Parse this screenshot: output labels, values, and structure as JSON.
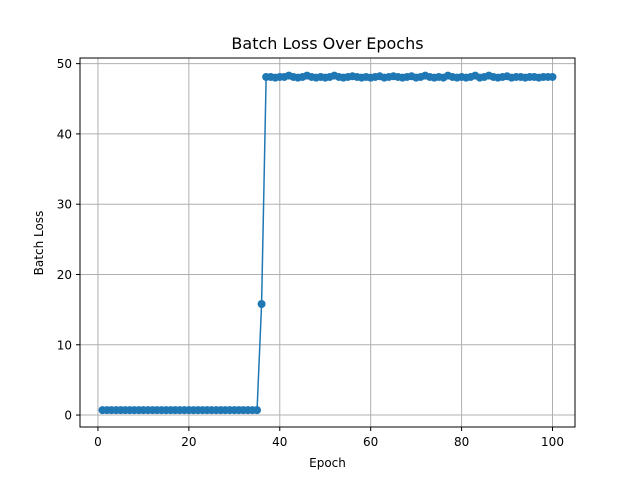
{
  "chart_data": {
    "type": "line",
    "title": "Batch Loss Over Epochs",
    "xlabel": "Epoch",
    "ylabel": "Batch Loss",
    "xlim": [
      -3.95,
      104.95
    ],
    "ylim": [
      -1.7,
      50.8
    ],
    "xticks": [
      0,
      20,
      40,
      60,
      80,
      100
    ],
    "yticks": [
      0,
      10,
      20,
      30,
      40,
      50
    ],
    "grid": true,
    "marker": "circle",
    "color": "#1f77b4",
    "series": [
      {
        "name": "Batch Loss",
        "x": [
          1,
          2,
          3,
          4,
          5,
          6,
          7,
          8,
          9,
          10,
          11,
          12,
          13,
          14,
          15,
          16,
          17,
          18,
          19,
          20,
          21,
          22,
          23,
          24,
          25,
          26,
          27,
          28,
          29,
          30,
          31,
          32,
          33,
          34,
          35,
          36,
          37,
          38,
          39,
          40,
          41,
          42,
          43,
          44,
          45,
          46,
          47,
          48,
          49,
          50,
          51,
          52,
          53,
          54,
          55,
          56,
          57,
          58,
          59,
          60,
          61,
          62,
          63,
          64,
          65,
          66,
          67,
          68,
          69,
          70,
          71,
          72,
          73,
          74,
          75,
          76,
          77,
          78,
          79,
          80,
          81,
          82,
          83,
          84,
          85,
          86,
          87,
          88,
          89,
          90,
          91,
          92,
          93,
          94,
          95,
          96,
          97,
          98,
          99,
          100
        ],
        "values": [
          0.7,
          0.7,
          0.7,
          0.7,
          0.7,
          0.7,
          0.7,
          0.7,
          0.7,
          0.7,
          0.7,
          0.7,
          0.7,
          0.7,
          0.7,
          0.7,
          0.7,
          0.7,
          0.7,
          0.7,
          0.7,
          0.7,
          0.7,
          0.7,
          0.7,
          0.7,
          0.7,
          0.7,
          0.7,
          0.7,
          0.7,
          0.7,
          0.7,
          0.7,
          0.7,
          15.8,
          48.1,
          48.1,
          48.0,
          48.1,
          48.1,
          48.3,
          48.1,
          48.0,
          48.1,
          48.3,
          48.1,
          48.0,
          48.1,
          48.0,
          48.1,
          48.3,
          48.1,
          48.0,
          48.1,
          48.2,
          48.1,
          48.0,
          48.1,
          48.0,
          48.1,
          48.2,
          48.0,
          48.1,
          48.2,
          48.1,
          48.0,
          48.1,
          48.2,
          48.0,
          48.1,
          48.3,
          48.1,
          48.0,
          48.1,
          48.0,
          48.3,
          48.1,
          48.0,
          48.1,
          48.0,
          48.1,
          48.3,
          48.0,
          48.1,
          48.3,
          48.1,
          48.0,
          48.1,
          48.2,
          48.0,
          48.1,
          48.1,
          48.0,
          48.1,
          48.1,
          48.0,
          48.1,
          48.1,
          48.1
        ]
      }
    ]
  }
}
